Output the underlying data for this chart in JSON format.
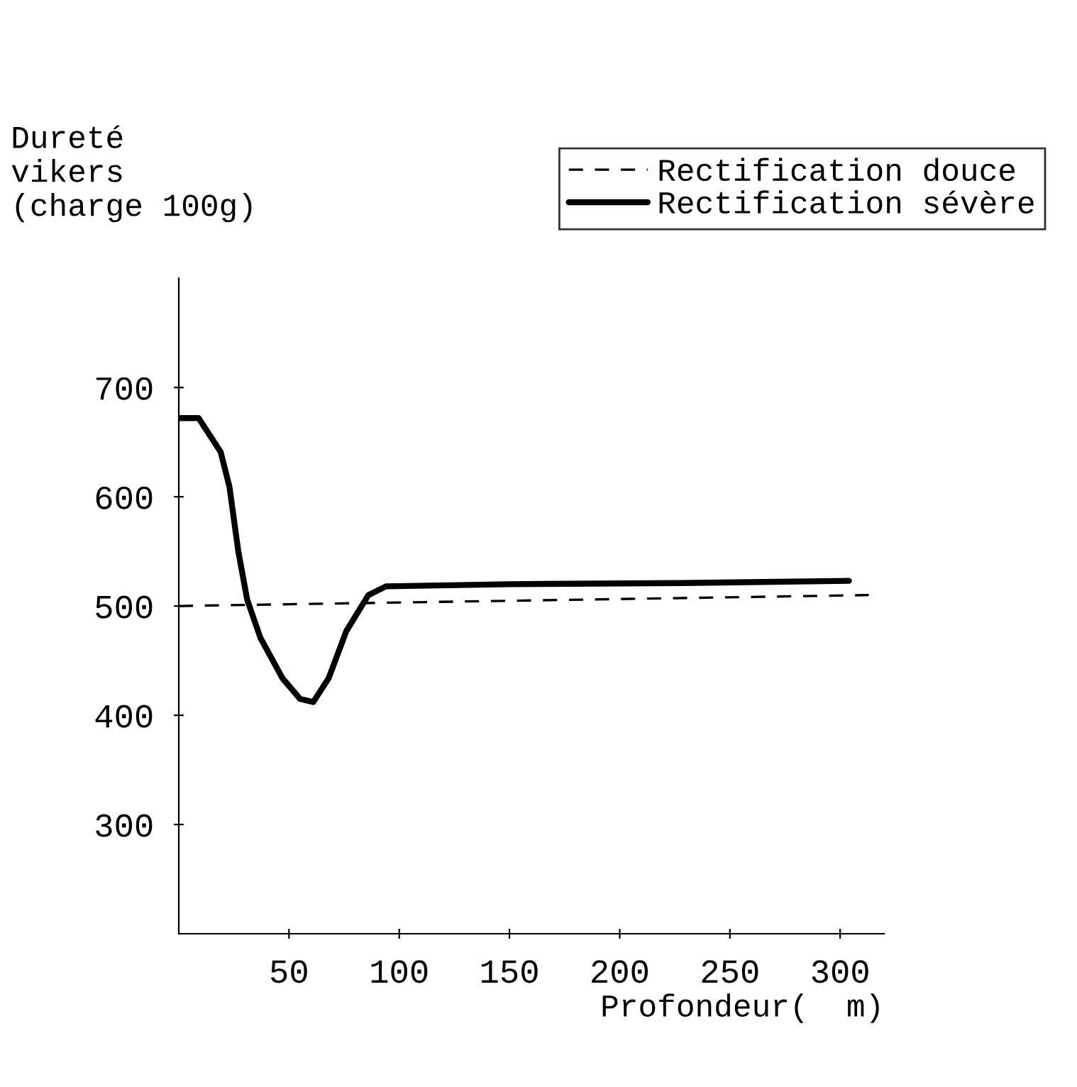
{
  "chart_data": {
    "type": "line",
    "ylabel": "Dureté\nvikers\n(charge 100g)",
    "xlabel": "Profondeur(  m)",
    "series": [
      {
        "name": "Rectification douce",
        "color": "#000000",
        "line_style": "dashed",
        "x": [
          0,
          313
        ],
        "values": [
          500,
          510
        ]
      },
      {
        "name": "Rectification sévère",
        "color": "#000000",
        "line_style": "solid",
        "x": [
          0,
          9,
          19,
          23,
          27,
          31,
          37,
          47,
          55,
          61,
          68,
          76,
          86,
          94,
          150,
          227,
          304
        ],
        "values": [
          672,
          672,
          641,
          609,
          550,
          506,
          471,
          434,
          415,
          412,
          434,
          477,
          510,
          518,
          520,
          521,
          523
        ]
      }
    ],
    "xlim": [
      0,
      320
    ],
    "ylim": [
      200,
      800
    ],
    "xticks": [
      50,
      100,
      150,
      200,
      250,
      300
    ],
    "yticks": [
      300,
      400,
      500,
      600,
      700
    ],
    "grid": false,
    "legend": "top right",
    "marker": "none"
  }
}
